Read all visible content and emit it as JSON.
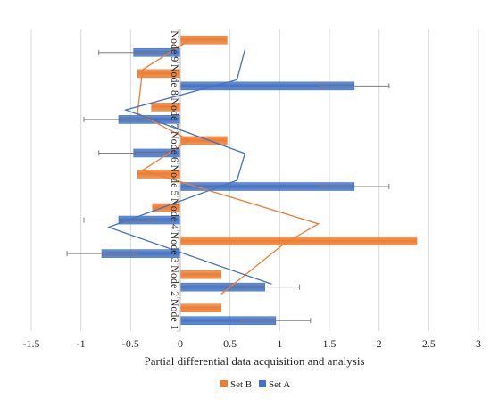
{
  "chart_data": {
    "type": "bar",
    "orientation": "horizontal",
    "title": "",
    "xlabel": "Partial differential data acquisition and analysis",
    "ylabel": "",
    "xlim": [
      -1.5,
      3
    ],
    "x_ticks": [
      -1.5,
      -1,
      -0.5,
      0,
      0.5,
      1,
      1.5,
      2,
      2.5,
      3
    ],
    "x_tick_labels": [
      "-1.5",
      "-1",
      "-0.5",
      "0",
      "0.5",
      "1",
      "1.5",
      "2",
      "2.5",
      "3"
    ],
    "categories": [
      "Node 1",
      "Node 2",
      "Node 3",
      "Node 4",
      "Node 5",
      "Node 6",
      "Node 7",
      "Node 8",
      "Node 9"
    ],
    "grid": "vertical",
    "legend": "bottom",
    "series": [
      {
        "name": "Set B",
        "color": "#ED7D31",
        "values": [
          0.41,
          0.41,
          2.38,
          -0.28,
          -0.43,
          0.47,
          -0.29,
          -0.43,
          0.47
        ]
      },
      {
        "name": "Set A",
        "color": "#4472C4",
        "values": [
          0.96,
          0.85,
          -0.79,
          -0.62,
          1.75,
          -0.47,
          -0.62,
          1.75,
          -0.47
        ],
        "error": [
          0.35,
          0.35,
          0.35,
          0.35,
          0.35,
          0.35,
          0.35,
          0.35,
          0.35
        ]
      }
    ],
    "overlay_lines": [
      {
        "color": "#ED7D31",
        "points": [
          [
            0.41,
            1.6
          ],
          [
            1.04,
            3.1
          ],
          [
            1.39,
            3.7
          ],
          [
            -0.38,
            5.3
          ],
          [
            0.09,
            6.2
          ],
          [
            -0.43,
            7.0
          ],
          [
            -0.38,
            8.3
          ],
          [
            0.1,
            9.2
          ]
        ]
      },
      {
        "color": "#4472C4",
        "points": [
          [
            0.92,
            1.9
          ],
          [
            -0.72,
            3.6
          ],
          [
            0.57,
            5.0
          ],
          [
            0.65,
            5.8
          ],
          [
            -0.55,
            7.1
          ],
          [
            0.57,
            8.0
          ],
          [
            0.65,
            8.9
          ]
        ]
      }
    ]
  }
}
